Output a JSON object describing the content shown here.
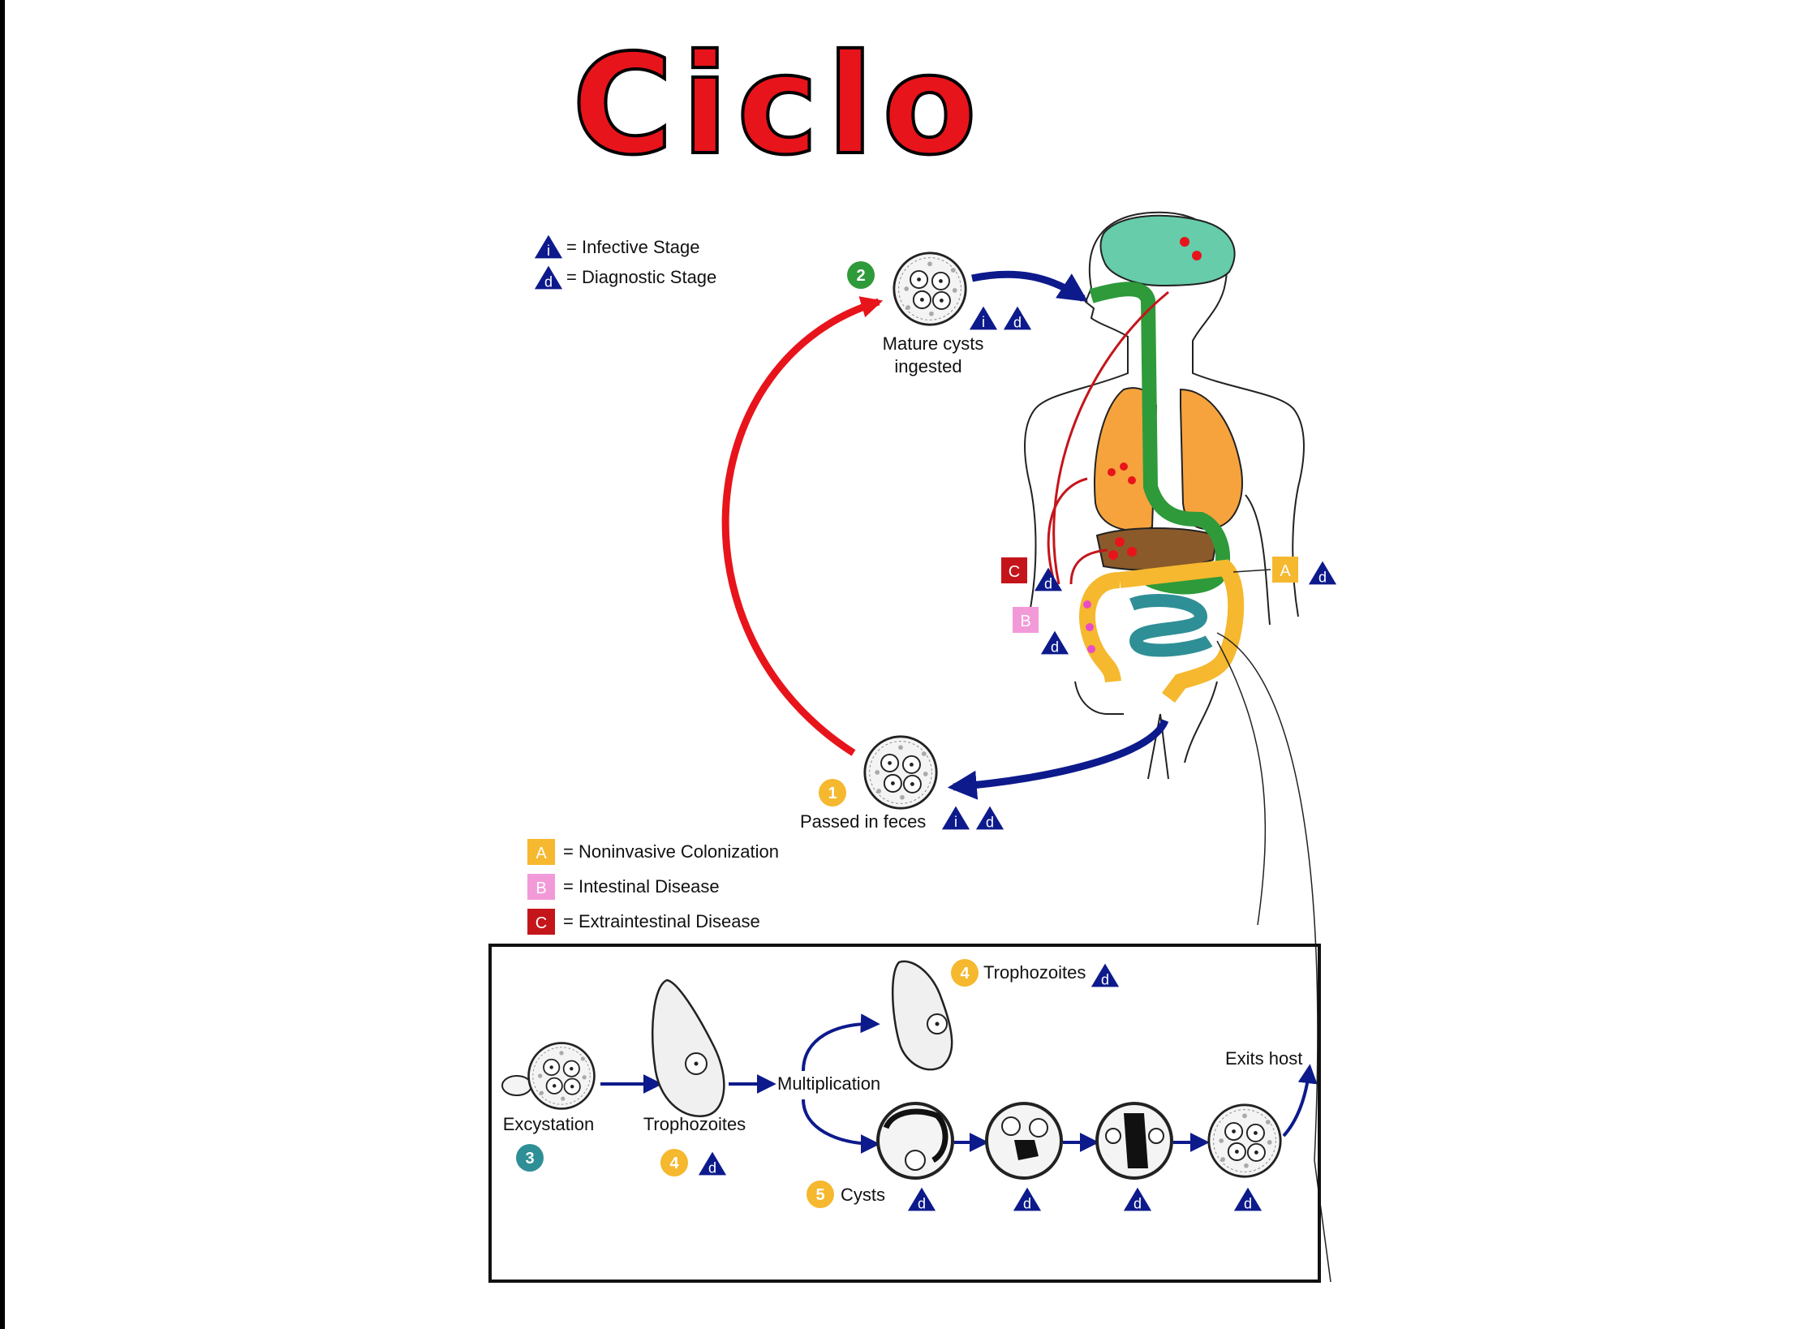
{
  "title": "Ciclo",
  "legend_stage": [
    {
      "glyph": "i",
      "text": "= Infective Stage"
    },
    {
      "glyph": "d",
      "text": "= Diagnostic Stage"
    }
  ],
  "legend_disease": [
    {
      "glyph": "A",
      "text": "= Noninvasive Colonization",
      "color": "#f5b82e"
    },
    {
      "glyph": "B",
      "text": "= Intestinal Disease",
      "color": "#f29ad8"
    },
    {
      "glyph": "C",
      "text": "= Extraintestinal Disease",
      "color": "#c4151b"
    }
  ],
  "cycle": {
    "step1": {
      "number": "1",
      "label": "Passed in feces"
    },
    "step2": {
      "number": "2",
      "label_line1": "Mature cysts",
      "label_line2": "ingested"
    }
  },
  "body_markers": {
    "a": "A",
    "b": "B",
    "c": "C"
  },
  "inset": {
    "excystation": "Excystation",
    "step3": "3",
    "trophozoites": "Trophozoites",
    "step4": "4",
    "multiplication": "Multiplication",
    "trophozoites_top": "Trophozoites",
    "step4_top": "4",
    "cysts": "Cysts",
    "step5": "5",
    "exits": "Exits host"
  },
  "glyphs": {
    "i": "i",
    "d": "d"
  },
  "colors": {
    "red": "#e8141b",
    "navy": "#0d1a8c",
    "yellow": "#f5b82e",
    "green": "#2e9a3a",
    "teal": "#2f8f96",
    "brain": "#66ccaa",
    "lung": "#f7a33d",
    "liver": "#8b5a2b",
    "pink": "#f29ad8",
    "darkred": "#c4151b"
  }
}
